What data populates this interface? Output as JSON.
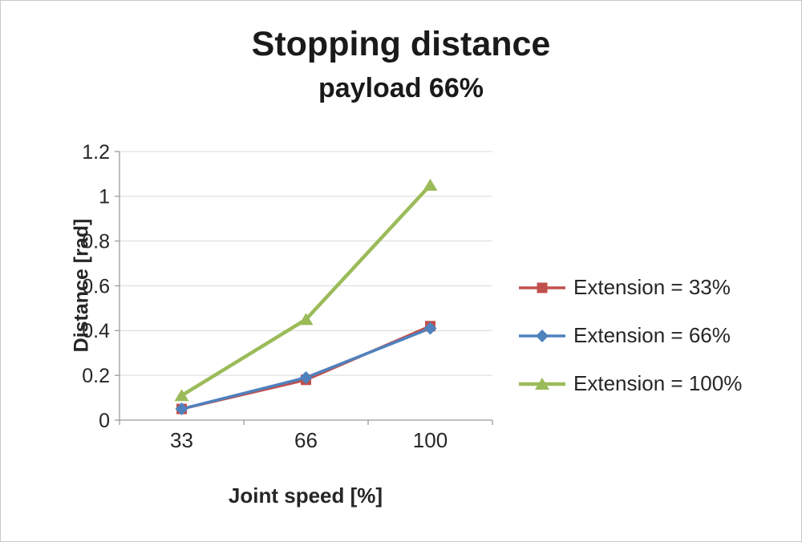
{
  "chart_data": {
    "type": "line",
    "title": "Stopping distance",
    "subtitle": "payload 66%",
    "xlabel": "Joint speed [%]",
    "ylabel": "Distance [rad]",
    "categories": [
      "33",
      "66",
      "100"
    ],
    "ylim": [
      0,
      1.2
    ],
    "yticks": [
      0,
      0.2,
      0.4,
      0.6,
      0.8,
      1,
      1.2
    ],
    "ytick_labels": [
      "0",
      "0.2",
      "0.4",
      "0.6",
      "0.8",
      "1",
      "1.2"
    ],
    "grid": true,
    "legend_position": "right",
    "series": [
      {
        "name": "Extension = 33%",
        "values": [
          0.05,
          0.18,
          0.42
        ],
        "color": "#c0504d",
        "marker": "square",
        "line_width": 3.5
      },
      {
        "name": "Extension = 66%",
        "values": [
          0.05,
          0.19,
          0.41
        ],
        "color": "#4f81bd",
        "marker": "diamond",
        "line_width": 3.5
      },
      {
        "name": "Extension = 100%",
        "values": [
          0.11,
          0.45,
          1.05
        ],
        "color": "#9bbb59",
        "marker": "triangle",
        "line_width": 4.5
      }
    ],
    "colors": {
      "gridline": "#d9d9d9",
      "axis": "#9b9b9b",
      "text": "#262626"
    }
  }
}
